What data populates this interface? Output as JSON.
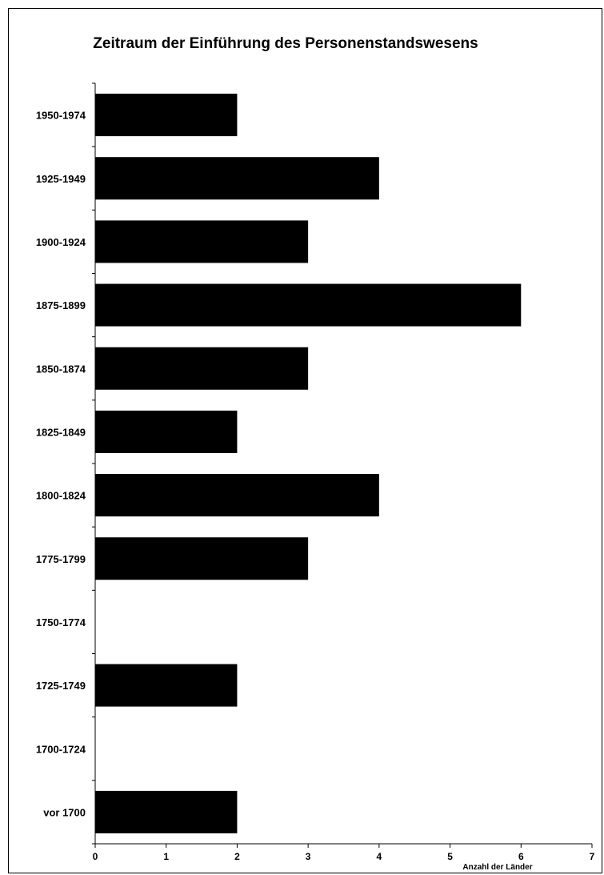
{
  "chart_data": {
    "type": "bar",
    "orientation": "horizontal",
    "title": "Zeitraum der Einführung des Personenstandswesens",
    "xlabel": "Anzahl der Länder",
    "ylabel": "",
    "categories": [
      "1950-1974",
      "1925-1949",
      "1900-1924",
      "1875-1899",
      "1850-1874",
      "1825-1849",
      "1800-1824",
      "1775-1799",
      "1750-1774",
      "1725-1749",
      "1700-1724",
      "vor 1700"
    ],
    "values": [
      2,
      4,
      3,
      6,
      3,
      2,
      4,
      3,
      0,
      2,
      0,
      2
    ],
    "xlim": [
      0,
      7
    ],
    "xticks": [
      "0",
      "1",
      "2",
      "3",
      "4",
      "5",
      "6",
      "7"
    ],
    "grid": false,
    "legend": "none",
    "bar_color": "#000000"
  }
}
